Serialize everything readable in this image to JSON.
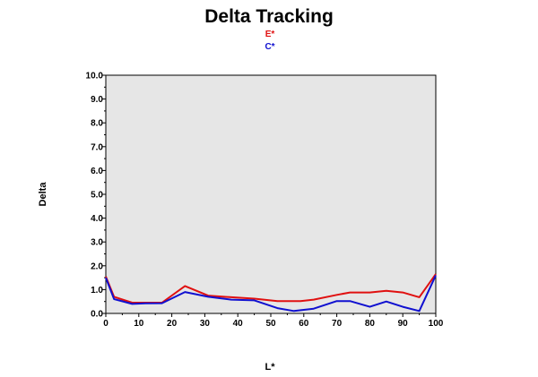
{
  "chart_data": {
    "type": "line",
    "title": "Delta Tracking",
    "xlabel": "L*",
    "ylabel": "Delta",
    "xlim": [
      0,
      100
    ],
    "ylim": [
      0,
      10
    ],
    "x_ticks": [
      "0",
      "10",
      "20",
      "30",
      "40",
      "50",
      "60",
      "70",
      "80",
      "90",
      "100"
    ],
    "y_ticks": [
      "0.0",
      "1.0",
      "2.0",
      "3.0",
      "4.0",
      "5.0",
      "6.0",
      "7.0",
      "8.0",
      "9.0",
      "10.0"
    ],
    "legend_position": "top-center",
    "plot_background": "#e6e6e6",
    "series": [
      {
        "name": "E*",
        "color": "#e01010",
        "points": [
          [
            0,
            1.55
          ],
          [
            2.5,
            0.7
          ],
          [
            8,
            0.45
          ],
          [
            12,
            0.45
          ],
          [
            17,
            0.45
          ],
          [
            24,
            1.15
          ],
          [
            31,
            0.75
          ],
          [
            38,
            0.68
          ],
          [
            45,
            0.62
          ],
          [
            52,
            0.52
          ],
          [
            59,
            0.52
          ],
          [
            63,
            0.58
          ],
          [
            70,
            0.78
          ],
          [
            74,
            0.88
          ],
          [
            80,
            0.88
          ],
          [
            85,
            0.95
          ],
          [
            90,
            0.88
          ],
          [
            95,
            0.68
          ],
          [
            100,
            1.65
          ]
        ]
      },
      {
        "name": "C*",
        "color": "#1010d0",
        "points": [
          [
            0,
            1.5
          ],
          [
            2.5,
            0.6
          ],
          [
            8,
            0.4
          ],
          [
            12,
            0.42
          ],
          [
            17,
            0.43
          ],
          [
            24,
            0.9
          ],
          [
            31,
            0.7
          ],
          [
            38,
            0.58
          ],
          [
            45,
            0.55
          ],
          [
            52,
            0.22
          ],
          [
            57,
            0.1
          ],
          [
            63,
            0.2
          ],
          [
            70,
            0.52
          ],
          [
            74,
            0.52
          ],
          [
            80,
            0.28
          ],
          [
            85,
            0.5
          ],
          [
            90,
            0.28
          ],
          [
            95,
            0.1
          ],
          [
            100,
            1.6
          ]
        ]
      }
    ]
  }
}
